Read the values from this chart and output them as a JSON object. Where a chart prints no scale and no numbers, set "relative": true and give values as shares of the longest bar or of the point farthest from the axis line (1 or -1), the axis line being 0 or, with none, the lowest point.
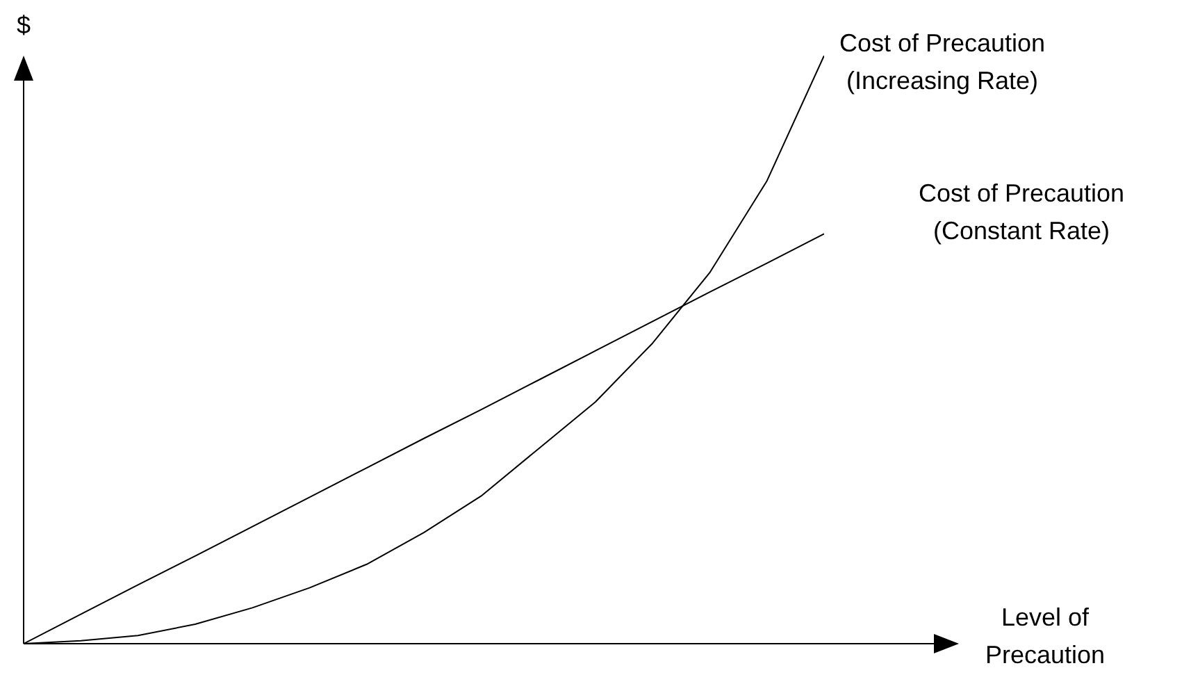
{
  "chart_data": {
    "type": "line",
    "relative": true,
    "annotations": [
      "Level of\nPrecaution"
    ],
    "ylabel": "$",
    "categories": [
      null,
      null,
      null,
      null,
      null,
      null,
      null,
      null,
      null,
      null,
      null,
      null,
      null,
      null,
      null
    ],
    "marker": "none",
    "series": [
      {
        "name": "Cost of Precaution (Increasing Rate)",
        "color": "#000000",
        "values": [
          0,
          0.005,
          0.014,
          0.033,
          0.061,
          0.095,
          0.135,
          0.189,
          0.251,
          0.331,
          0.411,
          0.511,
          0.631,
          0.787,
          1
        ]
      },
      {
        "name": "Cost of Precaution (Constant Rate)",
        "color": "#000000",
        "values": [
          0,
          0.05,
          0.1,
          0.149,
          0.199,
          0.249,
          0.299,
          0.349,
          0.398,
          0.448,
          0.498,
          0.548,
          0.598,
          0.647,
          0.697
        ]
      }
    ]
  }
}
